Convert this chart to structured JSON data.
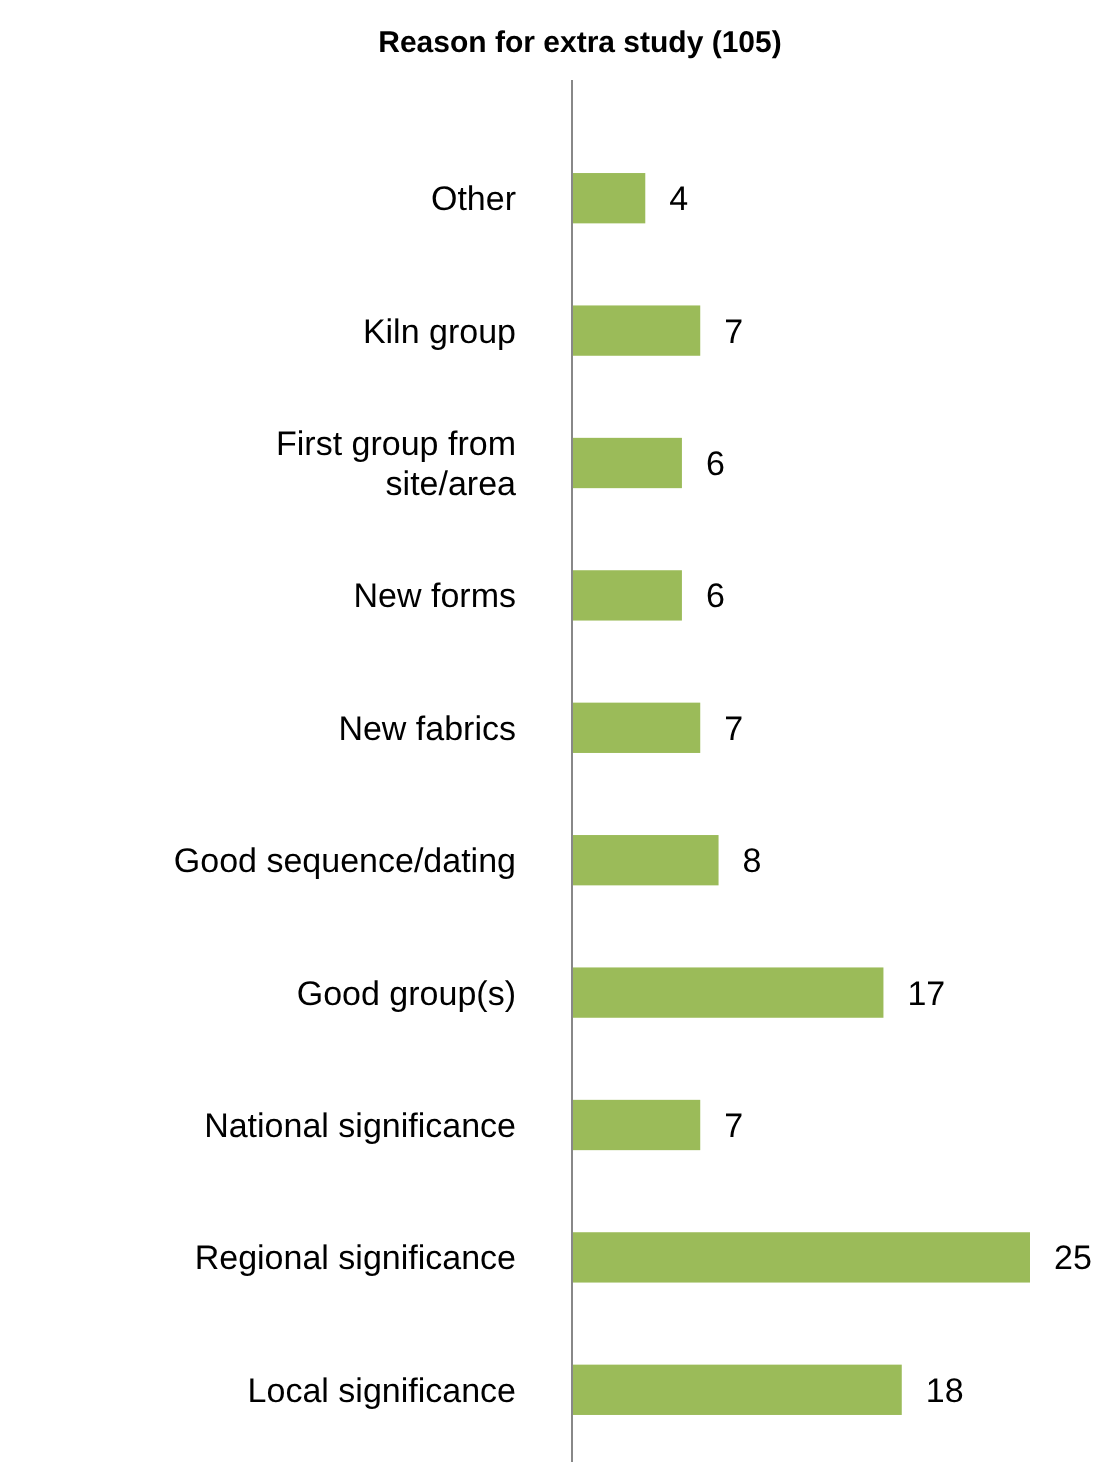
{
  "chart_data": {
    "type": "bar",
    "orientation": "horizontal",
    "title": "Reason for extra study (105)",
    "categories": [
      "Other",
      "Kiln group",
      "First group from site/area",
      "New forms",
      "New fabrics",
      "Good sequence/dating",
      "Good group(s)",
      "National significance",
      "Regional significance",
      "Local significance"
    ],
    "values": [
      4,
      7,
      6,
      6,
      7,
      8,
      17,
      7,
      25,
      18
    ],
    "color": "#9bbb59",
    "data_labels": true
  }
}
